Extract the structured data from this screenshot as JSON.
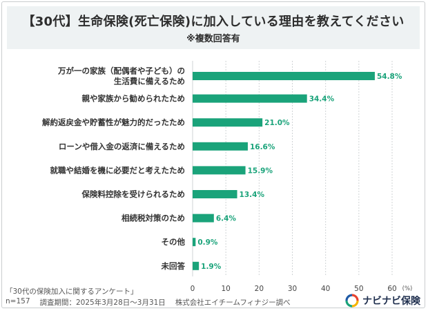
{
  "header": {
    "title": "【30代】生命保険(死亡保険)に加入している理由を教えてください",
    "subtitle": "※複数回答有"
  },
  "chart_data": {
    "type": "bar",
    "orientation": "horizontal",
    "categories": [
      [
        "万が一の家族（配偶者や子ども）の",
        "生活費に備えるため"
      ],
      [
        "親や家族から勧められたため"
      ],
      [
        "解約返戻金や貯蓄性が魅力的だったため"
      ],
      [
        "ローンや借入金の返済に備えるため"
      ],
      [
        "就職や結婚を機に必要だと考えたため"
      ],
      [
        "保険料控除を受けられるため"
      ],
      [
        "相続税対策のため"
      ],
      [
        "その他"
      ],
      [
        "未回答"
      ]
    ],
    "values": [
      54.8,
      34.4,
      21.0,
      16.6,
      15.9,
      13.4,
      6.4,
      0.9,
      1.9
    ],
    "value_labels": [
      "54.8%",
      "34.4%",
      "21.0%",
      "16.6%",
      "15.9%",
      "13.4%",
      "6.4%",
      "0.9%",
      "1.9%"
    ],
    "xlim": [
      0,
      60
    ],
    "ticks": [
      0,
      10,
      20,
      30,
      40,
      50,
      60
    ],
    "unit": "(%)",
    "bar_color": "#1aa37a",
    "grid": true
  },
  "footer": {
    "source": "「30代の保険加入に関するアンケート」",
    "sample": "n=157",
    "period": "調査期間：2025年3月28日～3月31日",
    "company": "株式会社エイチームフィナジー調べ"
  },
  "logo": {
    "text": "ナビナビ保険",
    "colors": [
      "#e8432f",
      "#f5b400",
      "#1aa37a",
      "#1f5aa6"
    ]
  }
}
